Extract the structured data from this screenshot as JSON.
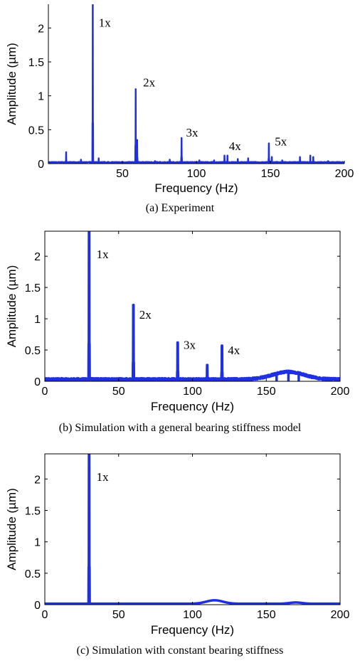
{
  "chart_data": [
    {
      "type": "line",
      "caption": "(a) Experiment",
      "xlabel": "Frequency (Hz)",
      "ylabel": "Amplitude (µm)",
      "xlim": [
        0,
        200
      ],
      "ylim": [
        0,
        2.35
      ],
      "xticks": [
        50,
        100,
        150,
        200
      ],
      "yticks": [
        0,
        0.5,
        1,
        1.5,
        2
      ],
      "box": "right-open",
      "line_width": 2,
      "noise": 0.02,
      "color": "#1f30e0",
      "peaks": [
        [
          12,
          0.17
        ],
        [
          22,
          0.06
        ],
        [
          30,
          2.4
        ],
        [
          34,
          0.08
        ],
        [
          59,
          1.1
        ],
        [
          60,
          0.35
        ],
        [
          72,
          0.04
        ],
        [
          82,
          0.06
        ],
        [
          90,
          0.38
        ],
        [
          102,
          0.05
        ],
        [
          112,
          0.05
        ],
        [
          119,
          0.12
        ],
        [
          121,
          0.12
        ],
        [
          128,
          0.07
        ],
        [
          135,
          0.08
        ],
        [
          149,
          0.3
        ],
        [
          151,
          0.1
        ],
        [
          158,
          0.05
        ],
        [
          170,
          0.1
        ],
        [
          177,
          0.12
        ],
        [
          179,
          0.1
        ],
        [
          189,
          0.04
        ]
      ],
      "bumps": [],
      "annotations": [
        {
          "text": "1x",
          "x": 34,
          "y": 2.02
        },
        {
          "text": "2x",
          "x": 64,
          "y": 1.14
        },
        {
          "text": "3x",
          "x": 93,
          "y": 0.4
        },
        {
          "text": "4x",
          "x": 122,
          "y": 0.2
        },
        {
          "text": "5x",
          "x": 153,
          "y": 0.27
        }
      ]
    },
    {
      "type": "line",
      "caption": "(b) Simulation with a general bearing stiffness model",
      "xlabel": "Frequency (Hz)",
      "ylabel": "Amplitude (µm)",
      "xlim": [
        0,
        200
      ],
      "ylim": [
        0,
        2.4
      ],
      "xticks": [
        0,
        50,
        100,
        150,
        200
      ],
      "yticks": [
        0,
        0.5,
        1,
        1.5,
        2
      ],
      "box": "full",
      "line_width": 3.5,
      "noise": 0.035,
      "color": "#1f30e0",
      "peaks": [
        [
          30,
          2.4
        ],
        [
          60,
          1.22
        ],
        [
          90,
          0.62
        ],
        [
          110,
          0.26
        ],
        [
          120,
          0.57
        ],
        [
          157,
          0.1
        ],
        [
          165,
          0.14
        ],
        [
          172,
          0.12
        ]
      ],
      "bumps": [
        [
          165,
          0.12,
          15
        ]
      ],
      "annotations": [
        {
          "text": "1x",
          "x": 35,
          "y": 1.97
        },
        {
          "text": "2x",
          "x": 64,
          "y": 1.0
        },
        {
          "text": "3x",
          "x": 94,
          "y": 0.52
        },
        {
          "text": "4x",
          "x": 124,
          "y": 0.43
        }
      ]
    },
    {
      "type": "line",
      "caption": "(c) Simulation with constant bearing stiffness",
      "xlabel": "Frequency (Hz)",
      "ylabel": "Amplitude (µm)",
      "xlim": [
        0,
        200
      ],
      "ylim": [
        0,
        2.4
      ],
      "xticks": [
        0,
        50,
        100,
        150,
        200
      ],
      "yticks": [
        0,
        0.5,
        1,
        1.5,
        2
      ],
      "box": "full",
      "line_width": 3.5,
      "noise": 0.0,
      "color": "#1f30e0",
      "peaks": [
        [
          30,
          2.4
        ]
      ],
      "bumps": [
        [
          115,
          0.055,
          8
        ],
        [
          170,
          0.02,
          6
        ]
      ],
      "baseline": 0.015,
      "annotations": [
        {
          "text": "1x",
          "x": 35,
          "y": 1.97
        }
      ]
    }
  ]
}
